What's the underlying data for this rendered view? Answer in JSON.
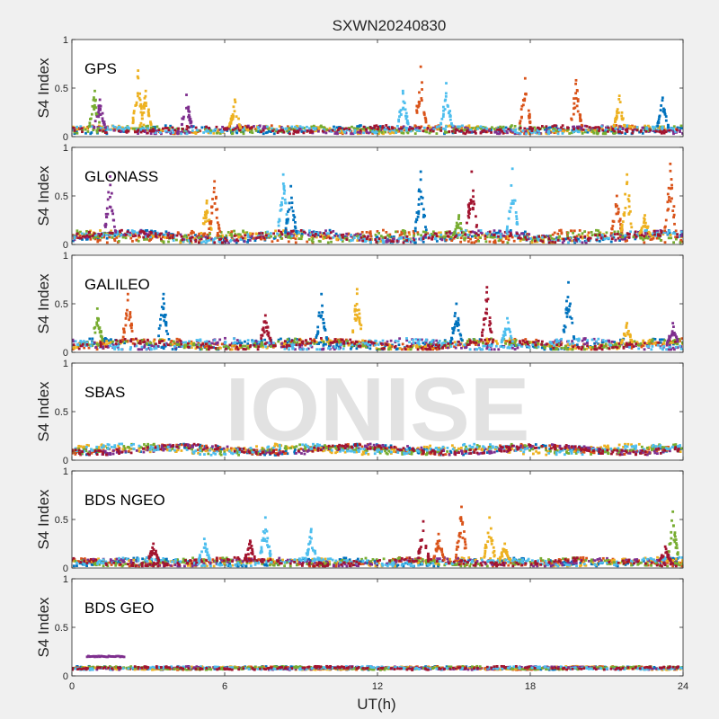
{
  "figure": {
    "title": "SXWN20240830",
    "watermark": "IONISE",
    "xlabel": "UT(h)",
    "xlim": [
      0,
      24
    ],
    "xticks": [
      "0",
      "6",
      "12",
      "18",
      "24"
    ],
    "xtick_values": [
      0,
      6,
      12,
      18,
      24
    ],
    "colors": {
      "blue": "#0072BD",
      "orange": "#D95319",
      "yellow": "#EDB120",
      "purple": "#7E2F8E",
      "green": "#77AC30",
      "cyan": "#4DBEEE",
      "red": "#A2142F"
    }
  },
  "chart_data": [
    {
      "type": "scatter",
      "panel_label": "GPS",
      "ylabel": "S4 Index",
      "ylim": [
        0,
        1
      ],
      "yticks": [
        "0",
        "0.5",
        "1"
      ],
      "baseline": {
        "min": 0.03,
        "max": 0.15,
        "typical": 0.07
      },
      "spikes": [
        {
          "x": 0.9,
          "peak": 0.47,
          "color": "green"
        },
        {
          "x": 1.1,
          "peak": 0.38,
          "color": "purple"
        },
        {
          "x": 2.6,
          "peak": 0.68,
          "color": "yellow"
        },
        {
          "x": 2.9,
          "peak": 0.47,
          "color": "yellow"
        },
        {
          "x": 4.5,
          "peak": 0.43,
          "color": "purple"
        },
        {
          "x": 6.4,
          "peak": 0.38,
          "color": "yellow"
        },
        {
          "x": 13.0,
          "peak": 0.47,
          "color": "cyan"
        },
        {
          "x": 13.7,
          "peak": 0.72,
          "color": "orange"
        },
        {
          "x": 14.7,
          "peak": 0.55,
          "color": "cyan"
        },
        {
          "x": 17.8,
          "peak": 0.6,
          "color": "orange"
        },
        {
          "x": 19.8,
          "peak": 0.58,
          "color": "orange"
        },
        {
          "x": 21.5,
          "peak": 0.42,
          "color": "yellow"
        },
        {
          "x": 23.2,
          "peak": 0.4,
          "color": "blue"
        }
      ]
    },
    {
      "type": "scatter",
      "panel_label": "GLONASS",
      "ylabel": "S4 Index",
      "ylim": [
        0,
        1
      ],
      "yticks": [
        "0",
        "0.5",
        "1"
      ],
      "baseline": {
        "min": 0.02,
        "max": 0.2,
        "typical": 0.08
      },
      "spikes": [
        {
          "x": 1.5,
          "peak": 0.7,
          "color": "purple"
        },
        {
          "x": 5.3,
          "peak": 0.45,
          "color": "yellow"
        },
        {
          "x": 5.6,
          "peak": 0.65,
          "color": "orange"
        },
        {
          "x": 8.3,
          "peak": 0.72,
          "color": "cyan"
        },
        {
          "x": 8.6,
          "peak": 0.6,
          "color": "blue"
        },
        {
          "x": 13.7,
          "peak": 0.75,
          "color": "blue"
        },
        {
          "x": 15.2,
          "peak": 0.3,
          "color": "green"
        },
        {
          "x": 15.7,
          "peak": 0.75,
          "color": "red"
        },
        {
          "x": 17.3,
          "peak": 0.78,
          "color": "cyan"
        },
        {
          "x": 21.4,
          "peak": 0.5,
          "color": "orange"
        },
        {
          "x": 21.8,
          "peak": 0.72,
          "color": "yellow"
        },
        {
          "x": 22.5,
          "peak": 0.3,
          "color": "yellow"
        },
        {
          "x": 23.5,
          "peak": 0.83,
          "color": "orange"
        }
      ]
    },
    {
      "type": "scatter",
      "panel_label": "GALILEO",
      "ylabel": "S4 Index",
      "ylim": [
        0,
        1
      ],
      "yticks": [
        "0",
        "0.5",
        "1"
      ],
      "baseline": {
        "min": 0.03,
        "max": 0.2,
        "typical": 0.08
      },
      "spikes": [
        {
          "x": 1.0,
          "peak": 0.45,
          "color": "green"
        },
        {
          "x": 2.2,
          "peak": 0.6,
          "color": "orange"
        },
        {
          "x": 3.6,
          "peak": 0.6,
          "color": "blue"
        },
        {
          "x": 7.6,
          "peak": 0.38,
          "color": "red"
        },
        {
          "x": 9.8,
          "peak": 0.6,
          "color": "blue"
        },
        {
          "x": 11.2,
          "peak": 0.65,
          "color": "yellow"
        },
        {
          "x": 15.1,
          "peak": 0.5,
          "color": "blue"
        },
        {
          "x": 16.3,
          "peak": 0.67,
          "color": "red"
        },
        {
          "x": 17.1,
          "peak": 0.35,
          "color": "cyan"
        },
        {
          "x": 19.5,
          "peak": 0.72,
          "color": "blue"
        },
        {
          "x": 21.8,
          "peak": 0.3,
          "color": "yellow"
        },
        {
          "x": 23.6,
          "peak": 0.3,
          "color": "purple"
        }
      ]
    },
    {
      "type": "scatter",
      "panel_label": "SBAS",
      "ylabel": "S4 Index",
      "ylim": [
        0,
        1
      ],
      "yticks": [
        "0",
        "0.5",
        "1"
      ],
      "baseline": {
        "min": 0.05,
        "max": 0.2,
        "typical": 0.11
      },
      "spikes": []
    },
    {
      "type": "scatter",
      "panel_label": "BDS NGEO",
      "ylabel": "S4 Index",
      "ylim": [
        0,
        1
      ],
      "yticks": [
        "0",
        "0.5",
        "1"
      ],
      "baseline": {
        "min": 0.02,
        "max": 0.15,
        "typical": 0.06
      },
      "spikes": [
        {
          "x": 3.2,
          "peak": 0.25,
          "color": "red"
        },
        {
          "x": 5.2,
          "peak": 0.3,
          "color": "cyan"
        },
        {
          "x": 7.0,
          "peak": 0.28,
          "color": "red"
        },
        {
          "x": 7.6,
          "peak": 0.52,
          "color": "cyan"
        },
        {
          "x": 9.4,
          "peak": 0.4,
          "color": "cyan"
        },
        {
          "x": 13.8,
          "peak": 0.48,
          "color": "red"
        },
        {
          "x": 14.4,
          "peak": 0.35,
          "color": "orange"
        },
        {
          "x": 15.3,
          "peak": 0.63,
          "color": "orange"
        },
        {
          "x": 16.4,
          "peak": 0.52,
          "color": "yellow"
        },
        {
          "x": 17.0,
          "peak": 0.25,
          "color": "yellow"
        },
        {
          "x": 23.6,
          "peak": 0.58,
          "color": "green"
        },
        {
          "x": 23.3,
          "peak": 0.22,
          "color": "red"
        }
      ]
    },
    {
      "type": "scatter",
      "panel_label": "BDS GEO",
      "ylabel": "S4 Index",
      "ylim": [
        0,
        1
      ],
      "yticks": [
        "0",
        "0.5",
        "1"
      ],
      "baseline": {
        "min": 0.05,
        "max": 0.1,
        "typical": 0.08
      },
      "spikes": [],
      "segments": [
        {
          "x_start": 0.6,
          "x_end": 2.1,
          "value": 0.2,
          "color": "purple"
        }
      ]
    }
  ]
}
